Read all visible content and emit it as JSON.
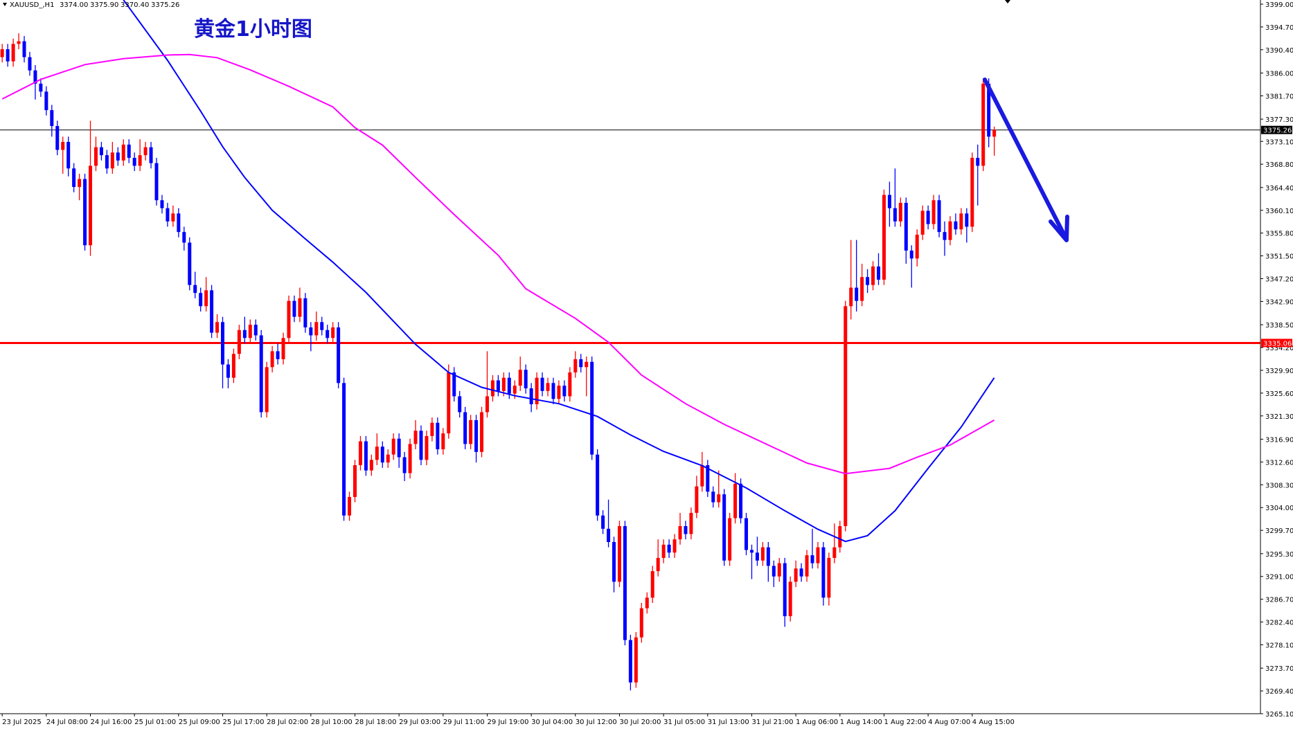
{
  "chart_data": {
    "type": "candlestick",
    "title": "黄金1小时图",
    "header": {
      "symbol": "XAUUSD_,H1",
      "ohlc": [
        "3374.00",
        "3375.90",
        "3370.40",
        "3375.26"
      ]
    },
    "up_color": "#ff0000",
    "down_color": "#0000ff",
    "xlim": [
      -0.4,
      228.3
    ],
    "xticks": [
      {
        "value": 0,
        "label": "23 Jul 2025"
      },
      {
        "value": 8,
        "label": "24 Jul 08:00"
      },
      {
        "value": 16,
        "label": "24 Jul 16:00"
      },
      {
        "value": 24,
        "label": "25 Jul 01:00"
      },
      {
        "value": 32,
        "label": "25 Jul 09:00"
      },
      {
        "value": 40,
        "label": "25 Jul 17:00"
      },
      {
        "value": 48,
        "label": "28 Jul 02:00"
      },
      {
        "value": 56,
        "label": "28 Jul 10:00"
      },
      {
        "value": 64,
        "label": "28 Jul 18:00"
      },
      {
        "value": 72,
        "label": "29 Jul 03:00"
      },
      {
        "value": 80,
        "label": "29 Jul 11:00"
      },
      {
        "value": 88,
        "label": "29 Jul 19:00"
      },
      {
        "value": 96,
        "label": "30 Jul 04:00"
      },
      {
        "value": 104,
        "label": "30 Jul 12:00"
      },
      {
        "value": 112,
        "label": "30 Jul 20:00"
      },
      {
        "value": 120,
        "label": "31 Jul 05:00"
      },
      {
        "value": 128,
        "label": "31 Jul 13:00"
      },
      {
        "value": 136,
        "label": "31 Jul 21:00"
      },
      {
        "value": 144,
        "label": "1 Aug 06:00"
      },
      {
        "value": 152,
        "label": "1 Aug 14:00"
      },
      {
        "value": 160,
        "label": "1 Aug 22:00"
      },
      {
        "value": 168,
        "label": "4 Aug 07:00"
      },
      {
        "value": 176,
        "label": "4 Aug 15:00"
      }
    ],
    "ylim": [
      3265.1,
      3399
    ],
    "yticks": [
      {
        "value": 3399,
        "label": "3399.00"
      },
      {
        "value": 3394.7,
        "label": "3394.70"
      },
      {
        "value": 3390.4,
        "label": "3390.40"
      },
      {
        "value": 3386,
        "label": "3386.00"
      },
      {
        "value": 3381.7,
        "label": "3381.70"
      },
      {
        "value": 3377.3,
        "label": "3377.30"
      },
      {
        "value": 3373.1,
        "label": "3373.10"
      },
      {
        "value": 3368.8,
        "label": "3368.80"
      },
      {
        "value": 3364.4,
        "label": "3364.40"
      },
      {
        "value": 3360.1,
        "label": "3360.10"
      },
      {
        "value": 3355.8,
        "label": "3355.80"
      },
      {
        "value": 3351.5,
        "label": "3351.50"
      },
      {
        "value": 3347.2,
        "label": "3347.20"
      },
      {
        "value": 3342.9,
        "label": "3342.90"
      },
      {
        "value": 3338.5,
        "label": "3338.50"
      },
      {
        "value": 3334.2,
        "label": "3334.20"
      },
      {
        "value": 3329.9,
        "label": "3329.90"
      },
      {
        "value": 3325.6,
        "label": "3325.60"
      },
      {
        "value": 3321.3,
        "label": "3321.30"
      },
      {
        "value": 3316.9,
        "label": "3316.90"
      },
      {
        "value": 3312.6,
        "label": "3312.60"
      },
      {
        "value": 3308.3,
        "label": "3308.30"
      },
      {
        "value": 3304,
        "label": "3304.00"
      },
      {
        "value": 3299.7,
        "label": "3299.70"
      },
      {
        "value": 3295.3,
        "label": "3295.30"
      },
      {
        "value": 3291,
        "label": "3291.00"
      },
      {
        "value": 3286.7,
        "label": "3286.70"
      },
      {
        "value": 3282.4,
        "label": "3282.40"
      },
      {
        "value": 3278.1,
        "label": "3278.10"
      },
      {
        "value": 3273.7,
        "label": "3273.70"
      },
      {
        "value": 3269.4,
        "label": "3269.40"
      },
      {
        "value": 3265.1,
        "label": "3265.10"
      }
    ],
    "hlines": [
      {
        "value": 3375.26,
        "label": "3375.26",
        "color": "#000000"
      },
      {
        "value": 3335.06,
        "label": "3335.06",
        "color": "#ff0000"
      }
    ],
    "series": [
      {
        "open": [
          3389,
          3390.5,
          3388.2,
          3391.5,
          3392,
          3389,
          3386.5,
          3384,
          3382.5,
          3379,
          3376,
          3371.5,
          3373,
          3368,
          3364.5,
          3366,
          3353.5,
          3368.5,
          3372,
          3370.5,
          3368,
          3371,
          3369.5,
          3372.5,
          3370,
          3368.5,
          3370.5,
          3372,
          3369,
          3362,
          3360.5,
          3358,
          3359.5,
          3356,
          3354,
          3346,
          3344.5,
          3342,
          3345,
          3337,
          3339,
          3331,
          3328.5,
          3333,
          3337.5,
          3336,
          3338.5,
          3336.5,
          3322,
          3330.5,
          3333.5,
          3332,
          3336,
          3343,
          3340,
          3343.5,
          3338,
          3336.5,
          3339,
          3337.5,
          3336,
          3338,
          3327.5,
          3302.5,
          3306,
          3312,
          3316.5,
          3311,
          3313,
          3315.5,
          3312.5,
          3314,
          3317,
          3313.5,
          3310.5,
          3316,
          3318.5,
          3313,
          3317.5,
          3320,
          3315,
          3318,
          3329.5,
          3325,
          3322,
          3316,
          3320.5,
          3314.5,
          3322,
          3325,
          3328,
          3326,
          3328.5,
          3325.5,
          3327,
          3330,
          3326.5,
          3323.5,
          3328.5,
          3326,
          3327.5,
          3324.5,
          3327,
          3325,
          3329.5,
          3332,
          3330.5,
          3331.5,
          3314,
          3302.5,
          3300,
          3297.5,
          3290,
          3300.5,
          3279,
          3271,
          3279.5,
          3285,
          3287,
          3292,
          3294.5,
          3297,
          3295.5,
          3298,
          3300.5,
          3299,
          3303,
          3308,
          3312,
          3307,
          3305,
          3306.5,
          3294,
          3302,
          3308.5,
          3302,
          3296,
          3295.5,
          3294,
          3296.5,
          3293,
          3291,
          3293.5,
          3283.5,
          3290,
          3292.5,
          3291,
          3295,
          3293.5,
          3296.5,
          3287,
          3294.5,
          3296.5,
          3300.5,
          3342,
          3345.5,
          3343,
          3347.5,
          3346,
          3349.5,
          3347,
          3363,
          3360.5,
          3358,
          3361.5,
          3352.5,
          3351,
          3355.5,
          3360,
          3357.5,
          3362,
          3356,
          3354.5,
          3358,
          3356.5,
          3359.5,
          3357,
          3370,
          3368.5,
          3384,
          3374
        ],
        "high": [
          3391.5,
          3391.5,
          3392.5,
          3393.5,
          3393,
          3390,
          3387.5,
          3385,
          3383.5,
          3380,
          3377,
          3374,
          3374,
          3369,
          3367,
          3367,
          3377,
          3374,
          3373,
          3371.5,
          3373,
          3372,
          3373.5,
          3373.5,
          3371,
          3373.5,
          3373,
          3373,
          3370,
          3363,
          3361.5,
          3361,
          3360.5,
          3357,
          3355,
          3348.5,
          3345.5,
          3347.5,
          3346,
          3340.5,
          3340,
          3332,
          3334,
          3338.5,
          3340,
          3339.5,
          3339.5,
          3337.5,
          3331.5,
          3334.5,
          3335,
          3337,
          3344,
          3344,
          3345.5,
          3344.5,
          3339,
          3341,
          3340,
          3338.5,
          3339,
          3339,
          3328.5,
          3307,
          3313,
          3317.5,
          3317.5,
          3314,
          3318,
          3316.5,
          3315,
          3318,
          3318,
          3314.5,
          3317,
          3320.5,
          3319.5,
          3318.5,
          3321,
          3321,
          3319,
          3331,
          3330.5,
          3326,
          3323,
          3321.5,
          3321.5,
          3323,
          3333.5,
          3329,
          3329,
          3329.5,
          3329.5,
          3328,
          3332.5,
          3331,
          3327.5,
          3329.5,
          3329.5,
          3328.5,
          3328.5,
          3328,
          3328,
          3330.5,
          3333.5,
          3333,
          3332.5,
          3332.5,
          3315,
          3303.5,
          3305.5,
          3298.5,
          3301.5,
          3301.5,
          3280,
          3280.5,
          3286,
          3288,
          3293,
          3298,
          3298,
          3298,
          3299,
          3303,
          3301.5,
          3304,
          3310,
          3314.5,
          3313,
          3308,
          3311,
          3307.5,
          3303,
          3310.5,
          3309.5,
          3303,
          3297,
          3298.5,
          3297.5,
          3297.5,
          3294,
          3294.5,
          3294.5,
          3291,
          3294,
          3293.5,
          3296,
          3300,
          3297.5,
          3297.5,
          3295.5,
          3301,
          3301.5,
          3343,
          3354.5,
          3354.5,
          3350,
          3349,
          3350.5,
          3352,
          3364,
          3365.5,
          3368,
          3362.5,
          3362.5,
          3353.5,
          3356.5,
          3361,
          3361,
          3363,
          3363,
          3358,
          3359,
          3359.5,
          3360.5,
          3360.5,
          3371,
          3372.5,
          3385,
          3385,
          3375.9
        ],
        "low": [
          3388,
          3387.2,
          3387.2,
          3390.5,
          3388,
          3385.5,
          3381,
          3381.5,
          3378,
          3374,
          3370.5,
          3367,
          3366.5,
          3363.5,
          3362,
          3352.5,
          3351.5,
          3367.5,
          3369.5,
          3367,
          3367,
          3368.5,
          3368.5,
          3369,
          3367.5,
          3367.5,
          3369.5,
          3368,
          3361,
          3359.5,
          3357,
          3357,
          3355,
          3352.5,
          3345,
          3343.5,
          3341,
          3341,
          3336,
          3336,
          3326.5,
          3326.5,
          3327.5,
          3332,
          3335,
          3335,
          3335.5,
          3321,
          3321,
          3329.5,
          3331,
          3331,
          3335,
          3339,
          3339,
          3337,
          3333.5,
          3335.5,
          3336.5,
          3335,
          3335,
          3326.5,
          3301.5,
          3301.5,
          3305,
          3311,
          3310,
          3310,
          3312,
          3311.5,
          3311.5,
          3313,
          3311.5,
          3309,
          3309.5,
          3315,
          3312,
          3312,
          3316.5,
          3314,
          3314,
          3317,
          3324,
          3321,
          3315,
          3315,
          3312.5,
          3313.5,
          3321,
          3324,
          3325,
          3325,
          3324.5,
          3324.5,
          3326,
          3325.5,
          3322,
          3322.5,
          3325,
          3325,
          3323.5,
          3323.5,
          3324,
          3324,
          3328.5,
          3329.5,
          3325,
          3313,
          3301.5,
          3299,
          3296.5,
          3288,
          3289,
          3278,
          3269.5,
          3270,
          3278.5,
          3284,
          3286,
          3291,
          3293.5,
          3294.5,
          3294.5,
          3297,
          3298,
          3298,
          3302,
          3307,
          3306,
          3304,
          3304,
          3293,
          3293,
          3301,
          3301,
          3295,
          3290.5,
          3293,
          3293,
          3290,
          3289,
          3290,
          3281.5,
          3282.5,
          3289,
          3290,
          3290,
          3292.5,
          3292.5,
          3285.5,
          3285.5,
          3293.5,
          3295.5,
          3299.5,
          3339.5,
          3341,
          3342,
          3344.5,
          3345,
          3346,
          3346,
          3357,
          3357,
          3357,
          3350,
          3345.5,
          3349.5,
          3354.5,
          3356.5,
          3356.5,
          3355,
          3351.5,
          3353.5,
          3355.5,
          3355.5,
          3354,
          3356,
          3361,
          3367.5,
          3372,
          3370.4
        ],
        "close": [
          3390.5,
          3388.2,
          3391.5,
          3392,
          3389,
          3386.5,
          3384,
          3382.5,
          3379,
          3376,
          3371.5,
          3373,
          3368,
          3364.5,
          3366,
          3353.5,
          3368.5,
          3372,
          3370.5,
          3368,
          3371,
          3369.5,
          3372.5,
          3370,
          3368.5,
          3370.5,
          3372,
          3369,
          3362,
          3360.5,
          3358,
          3359.5,
          3356,
          3354,
          3346,
          3344.5,
          3342,
          3345,
          3337,
          3339,
          3331,
          3328.5,
          3333,
          3337.5,
          3336,
          3338.5,
          3336.5,
          3322,
          3330.5,
          3333.5,
          3332,
          3336,
          3343,
          3340,
          3343.5,
          3338,
          3336.5,
          3339,
          3337.5,
          3336,
          3338,
          3327.5,
          3302.5,
          3306,
          3312,
          3316.5,
          3311,
          3313,
          3315.5,
          3312.5,
          3314,
          3317,
          3313.5,
          3310.5,
          3316,
          3318.5,
          3313,
          3317.5,
          3320,
          3315,
          3318,
          3329.5,
          3325,
          3322,
          3316,
          3320.5,
          3314.5,
          3322,
          3325,
          3328,
          3326,
          3328.5,
          3325.5,
          3327,
          3330,
          3326.5,
          3323.5,
          3328.5,
          3326,
          3327.5,
          3324.5,
          3327,
          3325,
          3329.5,
          3332,
          3330.5,
          3331.5,
          3314,
          3302.5,
          3300,
          3297.5,
          3290,
          3300.5,
          3279,
          3271,
          3279.5,
          3285,
          3287,
          3292,
          3294.5,
          3297,
          3295.5,
          3298,
          3300.5,
          3299,
          3303,
          3308,
          3312,
          3307,
          3305,
          3306.5,
          3294,
          3302,
          3308.5,
          3302,
          3296,
          3295.5,
          3294,
          3296.5,
          3293,
          3291,
          3293.5,
          3283.5,
          3290,
          3292.5,
          3291,
          3295,
          3293.5,
          3296.5,
          3287,
          3294.5,
          3296.5,
          3300.5,
          3342,
          3345.5,
          3343,
          3347.5,
          3346,
          3349.5,
          3347,
          3363,
          3360.5,
          3358,
          3361.5,
          3352.5,
          3351,
          3355.5,
          3360,
          3357.5,
          3362,
          3356,
          3354.5,
          3358,
          3356.5,
          3359.5,
          3357,
          3370,
          3368.5,
          3384,
          3374,
          3375.26
        ]
      }
    ],
    "lines": [
      {
        "color": "#0000ff",
        "x": [
          22,
          30,
          36,
          40,
          44,
          49,
          55,
          60,
          66,
          75,
          81,
          87,
          93,
          101,
          108,
          114,
          120,
          127,
          135,
          142,
          148,
          153,
          157,
          162,
          168,
          174,
          180
        ],
        "values": [
          3399.8,
          3388.4,
          3378.8,
          3372.1,
          3366.3,
          3360.1,
          3354.7,
          3350.3,
          3344.6,
          3334.8,
          3329.5,
          3326.7,
          3325.1,
          3323.6,
          3321.2,
          3317.7,
          3314.6,
          3311.9,
          3307.7,
          3303.4,
          3299.9,
          3297.6,
          3298.7,
          3303.4,
          3311.4,
          3319.2,
          3328.5
        ]
      },
      {
        "color": "#ff00ff",
        "x": [
          0,
          7,
          15,
          22,
          30,
          34,
          39,
          45,
          52,
          60,
          64,
          69,
          75,
          82,
          90,
          95,
          104,
          110,
          116,
          124,
          131,
          139,
          146,
          153,
          161,
          166,
          172,
          180
        ],
        "values": [
          3381.1,
          3384.8,
          3387.6,
          3388.7,
          3389.4,
          3389.5,
          3388.9,
          3386.6,
          3383.5,
          3379.6,
          3375.7,
          3372.4,
          3366.3,
          3359.3,
          3351.6,
          3345.3,
          3339.7,
          3335.2,
          3329,
          3323.6,
          3319.7,
          3315.8,
          3312.4,
          3310.4,
          3311.4,
          3313.5,
          3315.8,
          3320.5
        ]
      }
    ]
  }
}
